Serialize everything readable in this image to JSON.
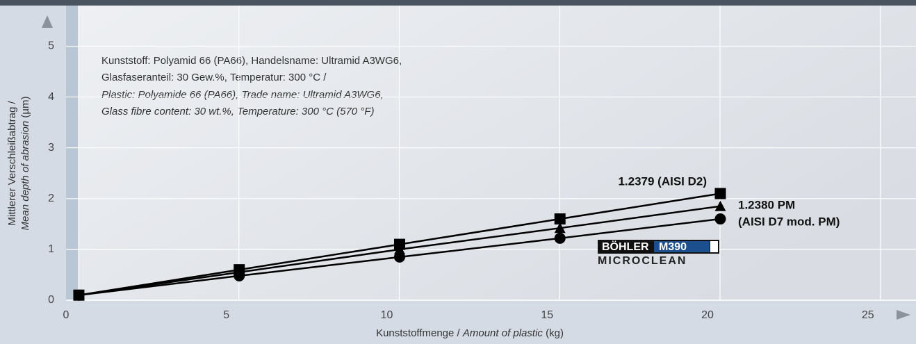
{
  "chart_data": {
    "type": "line",
    "annotation": [
      "Kunststoff: Polyamid 66 (PA66), Handelsname: Ultramid A3WG6,",
      "Glasfaseranteil: 30 Gew.%, Temperatur: 300 °C /",
      "Plastic: Polyamide 66 (PA66), Trade name: Ultramid A3WG6,",
      "Glass fibre content: 30 wt.%, Temperature: 300 °C (570 °F)"
    ],
    "x_label": [
      "Kunststoffmenge / ",
      "Amount of plastic",
      " (kg)"
    ],
    "y_label": [
      "Mittlerer Verschleißabtrag /",
      "Mean depth of abrasion",
      " (µm)"
    ],
    "x": [
      0.4,
      5.4,
      10.4,
      15.4,
      20.4
    ],
    "xlim": [
      0,
      26.5
    ],
    "xticks": [
      0,
      5,
      10,
      15,
      20,
      25
    ],
    "ylim": [
      0,
      5.8
    ],
    "yticks": [
      0,
      1,
      2,
      3,
      4,
      5
    ],
    "grid": true,
    "series": [
      {
        "name": [
          "1.2379 (AISI D2)"
        ],
        "color": "#000000",
        "marker": "square",
        "values": [
          0.1,
          0.6,
          1.1,
          1.6,
          2.1
        ]
      },
      {
        "name": [
          "1.2380 PM",
          "(AISI D7 mod. PM)"
        ],
        "color": "#000000",
        "marker": "triangle",
        "values": [
          0.1,
          0.55,
          1.0,
          1.42,
          1.85
        ]
      },
      {
        "name": [
          "BÖHLER",
          "M390",
          "MICROCLEAN"
        ],
        "color": "#000000",
        "marker": "circle",
        "values": [
          0.1,
          0.48,
          0.85,
          1.22,
          1.6
        ]
      }
    ]
  }
}
